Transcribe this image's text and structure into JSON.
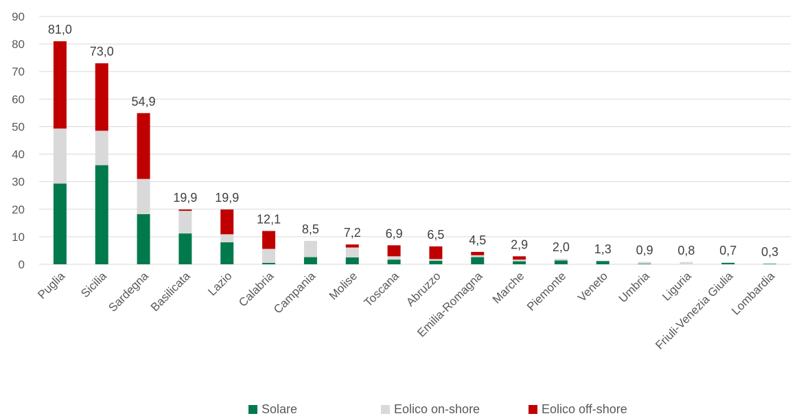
{
  "chart_data": {
    "type": "bar",
    "stacked": true,
    "categories": [
      "Puglia",
      "Sicilia",
      "Sardegna",
      "Basilicata",
      "Lazio",
      "Calabria",
      "Campania",
      "Molise",
      "Toscana",
      "Abruzzo",
      "Emilia-Romagna",
      "Marche",
      "Piemonte",
      "Veneto",
      "Umbria",
      "Liguria",
      "Friuli-Venezia Giulia",
      "Lombardia"
    ],
    "series": [
      {
        "name": "Solare",
        "color": "#007A4D",
        "values": [
          29.3,
          36.0,
          18.2,
          11.2,
          8.0,
          0.5,
          2.6,
          2.5,
          1.7,
          1.3,
          2.6,
          1.1,
          1.4,
          1.2,
          0.2,
          0.0,
          0.5,
          0.2
        ]
      },
      {
        "name": "Eolico on-shore",
        "color": "#D9D9D9",
        "values": [
          20.0,
          12.5,
          12.8,
          8.2,
          2.9,
          5.1,
          5.9,
          3.6,
          1.2,
          0.6,
          0.7,
          0.6,
          0.6,
          0.1,
          0.7,
          0.8,
          0.2,
          0.1
        ]
      },
      {
        "name": "Eolico off-shore",
        "color": "#C00000",
        "values": [
          31.7,
          24.5,
          23.9,
          0.5,
          9.0,
          6.5,
          0.0,
          1.1,
          4.0,
          4.6,
          1.2,
          1.2,
          0.0,
          0.0,
          0.0,
          0.0,
          0.0,
          0.0
        ]
      }
    ],
    "totals": [
      "81,0",
      "73,0",
      "54,9",
      "19,9",
      "19,9",
      "12,1",
      "8,5",
      "7,2",
      "6,9",
      "6,5",
      "4,5",
      "2,9",
      "2,0",
      "1,3",
      "0,9",
      "0,8",
      "0,7",
      "0,3"
    ],
    "ylim": [
      0,
      90
    ],
    "yticks": [
      "0",
      "10",
      "20",
      "30",
      "40",
      "50",
      "60",
      "70",
      "80",
      "90"
    ],
    "grid": true,
    "legend_position": "bottom",
    "title": "",
    "xlabel": "",
    "ylabel": ""
  }
}
